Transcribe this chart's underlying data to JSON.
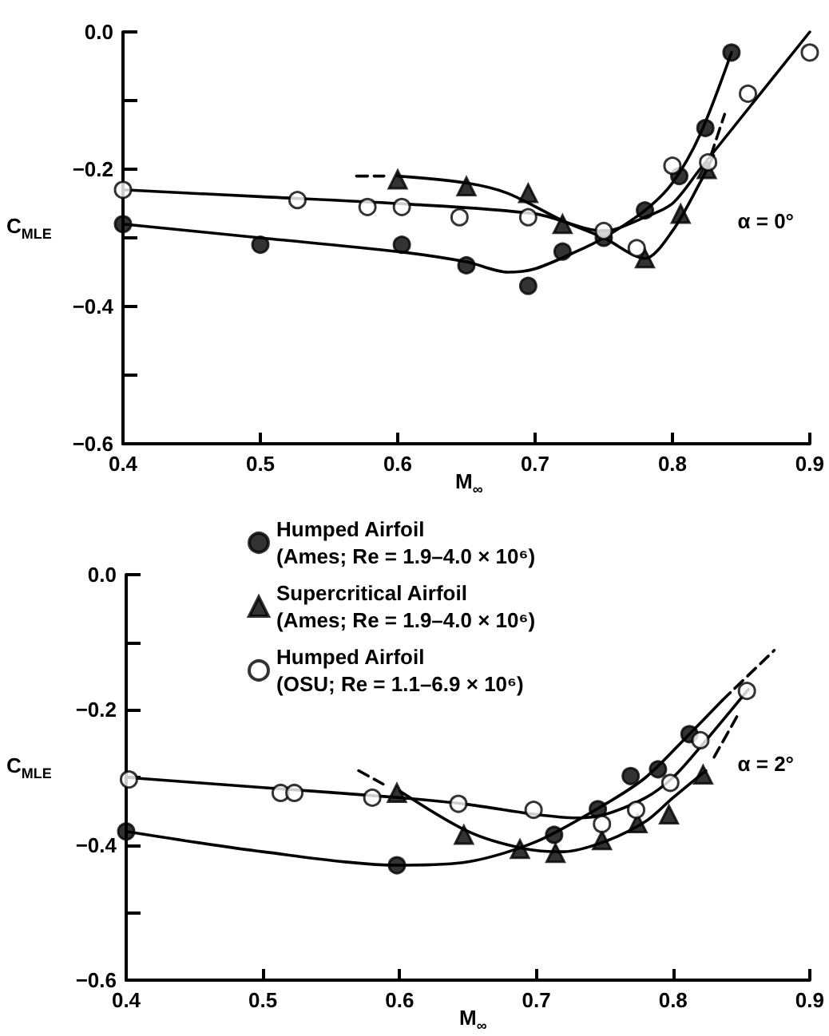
{
  "chart_data": [
    {
      "type": "scatter",
      "xlabel": "M$_{∞}$",
      "ylabel": "C$_{MLE}$",
      "xlim": [
        0.4,
        0.9
      ],
      "xticks": [
        0.4,
        0.5,
        0.6,
        0.7,
        0.8,
        0.9
      ],
      "ylim": [
        -0.6,
        0
      ],
      "yticks": [
        {
          "value": 0,
          "label": "0.0"
        },
        {
          "value": -0.1,
          "label": null
        },
        {
          "value": -0.2,
          "label": "−0.2"
        },
        {
          "value": -0.3,
          "label": null
        },
        {
          "value": -0.4,
          "label": "−0.4"
        },
        {
          "value": -0.5,
          "label": null
        },
        {
          "value": -0.6,
          "label": "−0.6"
        }
      ],
      "grid": false,
      "legend": false,
      "annotations": [
        "α = 0°"
      ],
      "series": [
        {
          "color": "#000000",
          "marker": "circle",
          "x": [
            0.4,
            0.5,
            0.603,
            0.65,
            0.695,
            0.72,
            0.75,
            0.78,
            0.805,
            0.824,
            0.843
          ],
          "values": [
            -0.28,
            -0.31,
            -0.31,
            -0.34,
            -0.37,
            -0.32,
            -0.3,
            -0.26,
            -0.21,
            -0.14,
            -0.03
          ]
        },
        {
          "color": "#000000",
          "marker": "triangle",
          "x": [
            0.6,
            0.65,
            0.695,
            0.72,
            0.78,
            0.806,
            0.825
          ],
          "values": [
            -0.215,
            -0.225,
            -0.235,
            -0.28,
            -0.33,
            -0.265,
            -0.2
          ]
        },
        {
          "color": "#ffffff",
          "marker": "circle",
          "x": [
            0.4,
            0.527,
            0.578,
            0.603,
            0.645,
            0.695,
            0.75,
            0.774,
            0.8,
            0.826,
            0.855,
            0.9
          ],
          "values": [
            -0.23,
            -0.245,
            -0.255,
            -0.255,
            -0.27,
            -0.27,
            -0.29,
            -0.315,
            -0.195,
            -0.19,
            -0.09,
            -0.03
          ]
        },
        {
          "type": "line",
          "color": "#000000",
          "marker": "none",
          "line_style": "solid",
          "x": [
            0.4,
            0.5,
            0.6,
            0.65,
            0.68,
            0.7,
            0.73,
            0.75,
            0.78,
            0.8,
            0.82,
            0.843
          ],
          "values": [
            -0.28,
            -0.3,
            -0.32,
            -0.335,
            -0.35,
            -0.345,
            -0.32,
            -0.3,
            -0.26,
            -0.22,
            -0.15,
            -0.03
          ]
        },
        {
          "type": "line",
          "color": "#000000",
          "marker": "none",
          "line_style": "solid",
          "x": [
            0.4,
            0.5,
            0.6,
            0.7,
            0.75,
            0.78,
            0.8,
            0.82,
            0.85,
            0.9
          ],
          "values": [
            -0.23,
            -0.24,
            -0.25,
            -0.265,
            -0.29,
            -0.27,
            -0.25,
            -0.2,
            -0.125,
            0
          ]
        },
        {
          "type": "line",
          "color": "#000000",
          "marker": "none",
          "line_style": "solid",
          "x": [
            0.6,
            0.65,
            0.68,
            0.72,
            0.75,
            0.78,
            0.8,
            0.82,
            0.83
          ],
          "values": [
            -0.21,
            -0.22,
            -0.235,
            -0.275,
            -0.3,
            -0.33,
            -0.29,
            -0.22,
            -0.18
          ]
        },
        {
          "type": "line",
          "color": "#000000",
          "marker": "none",
          "line_style": "dashed",
          "x": [
            0.57,
            0.59
          ],
          "values": [
            -0.21,
            -0.21
          ]
        },
        {
          "type": "line",
          "color": "#000000",
          "marker": "none",
          "line_style": "dashed",
          "x": [
            0.828,
            0.838
          ],
          "values": [
            -0.18,
            -0.12
          ]
        }
      ]
    },
    {
      "type": "scatter",
      "xlabel": "M$_{∞}$",
      "ylabel": "C$_{MLE}$",
      "xlim": [
        0.4,
        0.9
      ],
      "xticks": [
        0.4,
        0.5,
        0.6,
        0.7,
        0.8,
        0.9
      ],
      "ylim": [
        -0.6,
        0
      ],
      "yticks": [
        {
          "value": 0,
          "label": "0.0"
        },
        {
          "value": -0.1,
          "label": null
        },
        {
          "value": -0.2,
          "label": "−0.2"
        },
        {
          "value": -0.3,
          "label": null
        },
        {
          "value": -0.4,
          "label": "−0.4"
        },
        {
          "value": -0.5,
          "label": null
        },
        {
          "value": -0.6,
          "label": "−0.6"
        }
      ],
      "grid": false,
      "legend": "top",
      "annotations": [
        "α = 2°"
      ],
      "series": [
        {
          "name": "Humped Airfoil\n(Ames; Re = 1.9–4.0 × 10⁶)",
          "color": "#000000",
          "marker": "circle",
          "x": [
            0.4,
            0.598,
            0.713,
            0.745,
            0.769,
            0.789,
            0.812
          ],
          "values": [
            -0.38,
            -0.43,
            -0.385,
            -0.347,
            -0.298,
            -0.288,
            -0.236
          ]
        },
        {
          "name": "Supercritical Airfoil\n(Ames; Re = 1.9–4.0 × 10⁶)",
          "color": "#000000",
          "marker": "triangle",
          "x": [
            0.598,
            0.647,
            0.688,
            0.714,
            0.748,
            0.774,
            0.797,
            0.822
          ],
          "values": [
            -0.323,
            -0.385,
            -0.406,
            -0.412,
            -0.393,
            -0.368,
            -0.355,
            -0.296
          ]
        },
        {
          "name": "Humped Airfoil\n(OSU; Re = 1.1–6.9 × 10⁶)",
          "color": "#ffffff",
          "marker": "circle",
          "x": [
            0.402,
            0.513,
            0.523,
            0.58,
            0.643,
            0.698,
            0.748,
            0.773,
            0.798,
            0.82,
            0.854
          ],
          "values": [
            -0.303,
            -0.323,
            -0.323,
            -0.33,
            -0.339,
            -0.348,
            -0.369,
            -0.348,
            -0.308,
            -0.245,
            -0.172
          ]
        },
        {
          "type": "line",
          "color": "#000000",
          "marker": "none",
          "line_style": "solid",
          "x": [
            0.4,
            0.5,
            0.6,
            0.65,
            0.7,
            0.75,
            0.78,
            0.81,
            0.836
          ],
          "values": [
            -0.38,
            -0.41,
            -0.43,
            -0.425,
            -0.395,
            -0.34,
            -0.3,
            -0.24,
            -0.186
          ]
        },
        {
          "type": "line",
          "color": "#000000",
          "marker": "none",
          "line_style": "dashed",
          "x": [
            0.836,
            0.874
          ],
          "values": [
            -0.186,
            -0.112
          ]
        },
        {
          "type": "line",
          "color": "#000000",
          "marker": "none",
          "line_style": "solid",
          "x": [
            0.4,
            0.5,
            0.6,
            0.65,
            0.7,
            0.73,
            0.75,
            0.78,
            0.8,
            0.82,
            0.855
          ],
          "values": [
            -0.3,
            -0.315,
            -0.33,
            -0.34,
            -0.355,
            -0.36,
            -0.355,
            -0.33,
            -0.3,
            -0.255,
            -0.17
          ]
        },
        {
          "type": "line",
          "color": "#000000",
          "marker": "none",
          "line_style": "dashed",
          "x": [
            0.57,
            0.588
          ],
          "values": [
            -0.29,
            -0.31
          ]
        },
        {
          "type": "line",
          "color": "#000000",
          "marker": "none",
          "line_style": "solid",
          "x": [
            0.6,
            0.65,
            0.69,
            0.72,
            0.75,
            0.78,
            0.8,
            0.824
          ],
          "values": [
            -0.32,
            -0.38,
            -0.405,
            -0.41,
            -0.395,
            -0.365,
            -0.33,
            -0.29
          ]
        },
        {
          "type": "line",
          "color": "#000000",
          "marker": "none",
          "line_style": "dashed",
          "x": [
            0.83,
            0.847
          ],
          "values": [
            -0.27,
            -0.209
          ]
        }
      ]
    }
  ]
}
